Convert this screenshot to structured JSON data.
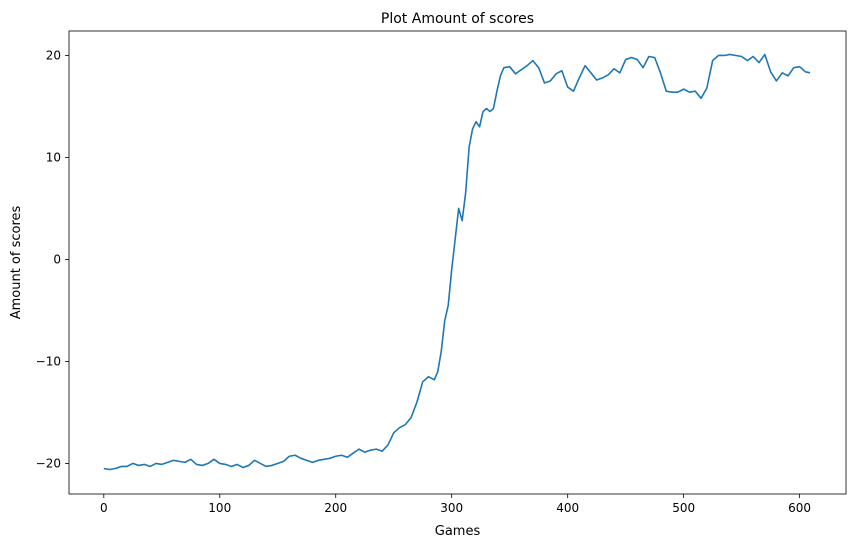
{
  "chart_data": {
    "type": "line",
    "title": "Plot Amount of scores",
    "xlabel": "Games",
    "ylabel": "Amount of scores",
    "xlim": [
      -30,
      640
    ],
    "ylim": [
      -23,
      22.4
    ],
    "xticks": [
      0,
      100,
      200,
      300,
      400,
      500,
      600
    ],
    "yticks": [
      -20,
      -10,
      0,
      10,
      20
    ],
    "xtick_labels": [
      "0",
      "100",
      "200",
      "300",
      "400",
      "500",
      "600"
    ],
    "ytick_labels": [
      "−20",
      "−10",
      "0",
      "10",
      "20"
    ],
    "grid": false,
    "legend": "none",
    "series": [
      {
        "color": "#1f77b4",
        "x": [
          0,
          5,
          10,
          15,
          20,
          25,
          30,
          35,
          40,
          45,
          50,
          55,
          60,
          65,
          70,
          75,
          80,
          85,
          90,
          95,
          100,
          105,
          110,
          115,
          120,
          125,
          130,
          135,
          140,
          145,
          150,
          155,
          160,
          165,
          170,
          175,
          180,
          185,
          190,
          195,
          200,
          205,
          210,
          215,
          220,
          225,
          230,
          235,
          240,
          245,
          250,
          255,
          260,
          265,
          270,
          275,
          280,
          285,
          288,
          291,
          294,
          297,
          300,
          303,
          306,
          309,
          312,
          315,
          318,
          321,
          324,
          327,
          330,
          333,
          336,
          339,
          342,
          345,
          350,
          355,
          360,
          365,
          370,
          375,
          380,
          385,
          390,
          395,
          400,
          405,
          410,
          415,
          420,
          425,
          430,
          435,
          440,
          445,
          450,
          455,
          460,
          465,
          470,
          475,
          480,
          485,
          490,
          495,
          500,
          505,
          510,
          515,
          520,
          525,
          530,
          535,
          540,
          545,
          550,
          555,
          560,
          565,
          570,
          575,
          580,
          585,
          590,
          595,
          600,
          605,
          609
        ],
        "y": [
          -20.5,
          -20.6,
          -20.5,
          -20.3,
          -20.3,
          -20.0,
          -20.2,
          -20.1,
          -20.3,
          -20.0,
          -20.1,
          -19.9,
          -19.7,
          -19.8,
          -19.9,
          -19.6,
          -20.1,
          -20.2,
          -20.0,
          -19.6,
          -20.0,
          -20.1,
          -20.3,
          -20.1,
          -20.4,
          -20.2,
          -19.7,
          -20.0,
          -20.3,
          -20.2,
          -20.0,
          -19.8,
          -19.3,
          -19.2,
          -19.5,
          -19.7,
          -19.9,
          -19.7,
          -19.6,
          -19.5,
          -19.3,
          -19.2,
          -19.4,
          -19.0,
          -18.6,
          -18.9,
          -18.7,
          -18.6,
          -18.8,
          -18.2,
          -17.0,
          -16.5,
          -16.2,
          -15.5,
          -14.0,
          -12.0,
          -11.5,
          -11.8,
          -11.0,
          -9.0,
          -6.0,
          -4.5,
          -1.0,
          2.0,
          5.0,
          3.8,
          6.5,
          11.0,
          12.8,
          13.5,
          13.0,
          14.5,
          14.8,
          14.5,
          14.8,
          16.5,
          18.0,
          18.8,
          18.9,
          18.2,
          18.6,
          19.0,
          19.5,
          18.8,
          17.3,
          17.5,
          18.2,
          18.5,
          16.9,
          16.5,
          17.8,
          19.0,
          18.3,
          17.6,
          17.8,
          18.1,
          18.7,
          18.3,
          19.6,
          19.8,
          19.6,
          18.8,
          19.9,
          19.8,
          18.3,
          16.5,
          16.4,
          16.4,
          16.7,
          16.4,
          16.5,
          15.8,
          16.8,
          19.5,
          20.0,
          20.0,
          20.1,
          20.0,
          19.9,
          19.5,
          19.9,
          19.3,
          20.1,
          18.4,
          17.5,
          18.3,
          18.0,
          18.8,
          18.9,
          18.4,
          18.3
        ]
      }
    ]
  }
}
